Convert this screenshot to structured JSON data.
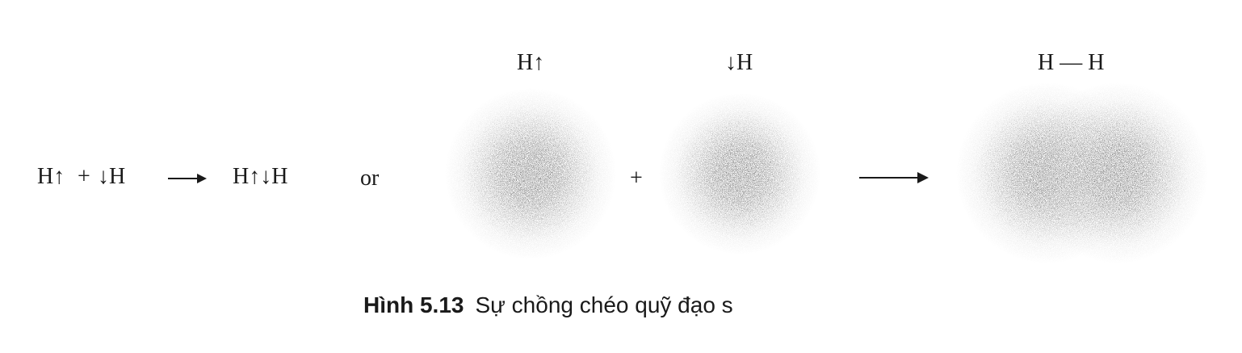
{
  "equation": {
    "reactant_left": "H↑",
    "plus": "+",
    "reactant_right": "↓H",
    "product": "H↑↓H",
    "or_word": "or"
  },
  "orbitals": {
    "atom1_label": "H↑",
    "atom2_label": "↓H",
    "plus": "+",
    "molecule_label": "H — H"
  },
  "caption": {
    "number": "Hình 5.13",
    "text": "Sự chồng chéo quỹ đạo s"
  }
}
